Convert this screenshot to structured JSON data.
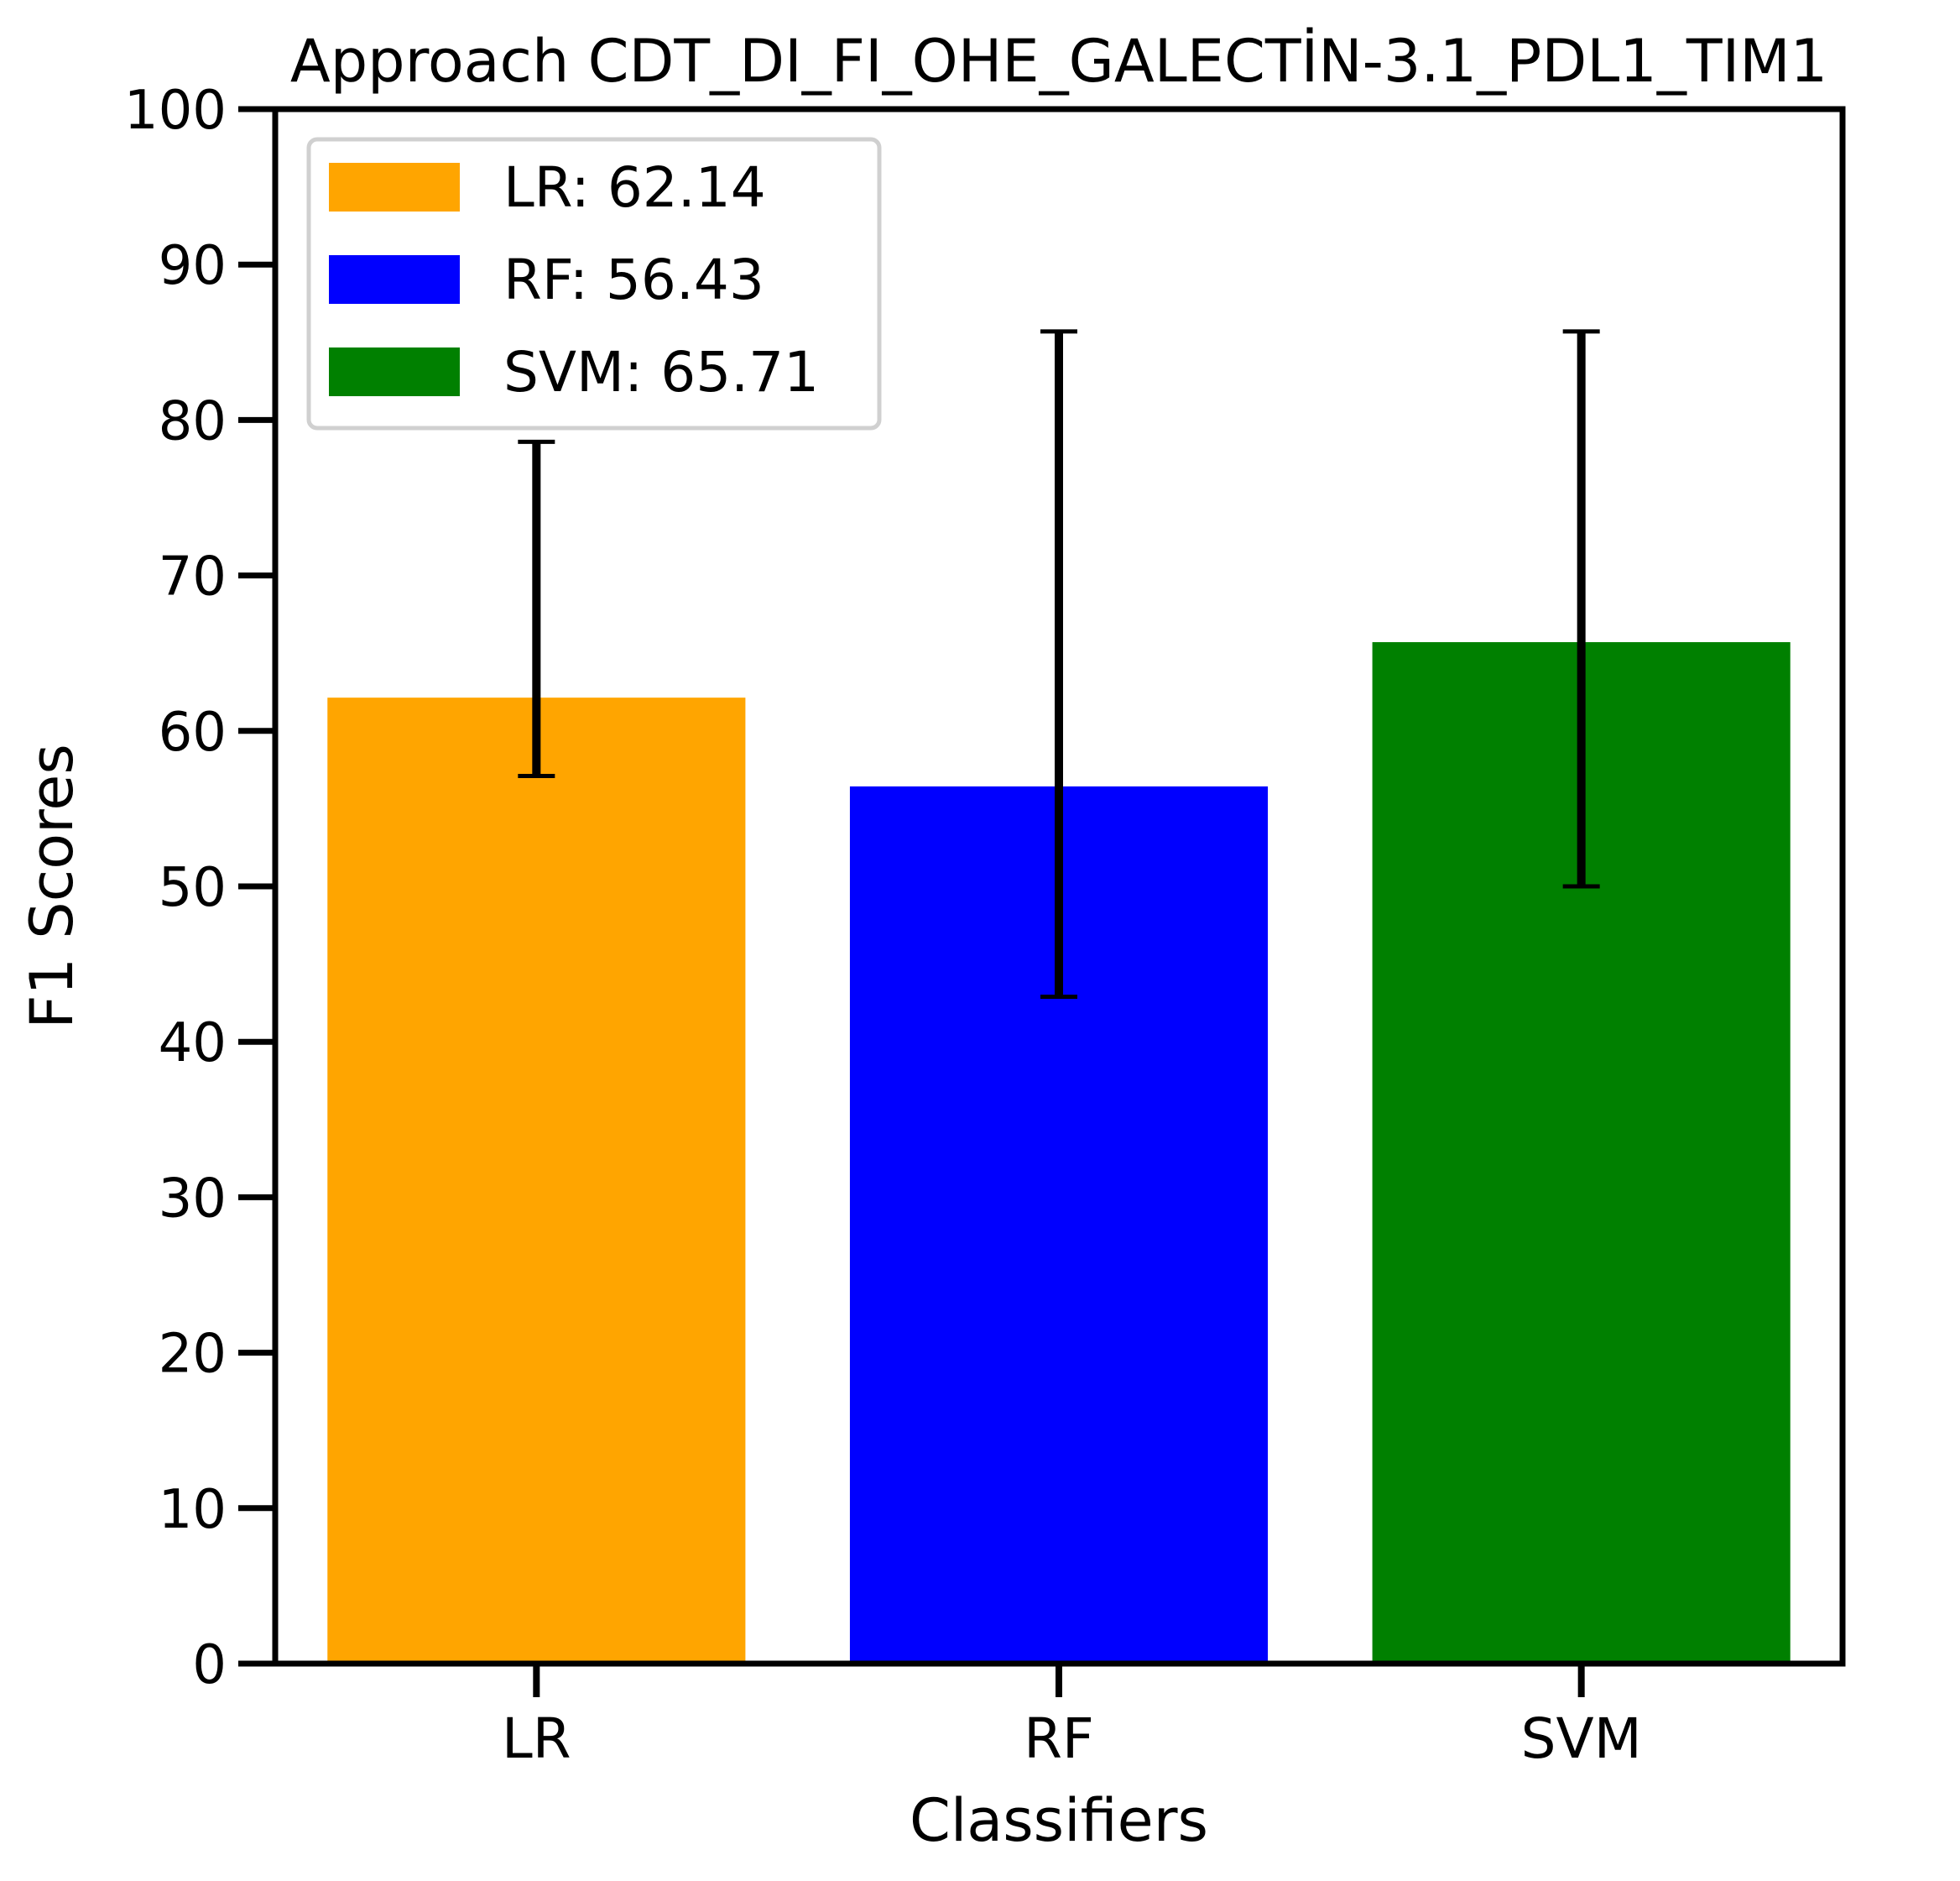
{
  "chart_data": {
    "type": "bar",
    "title": "Approach CDT_DI_FI_OHE_GALECTİN-3.1_PDL1_TIM1",
    "xlabel": "Classifiers",
    "ylabel": "F1 Scores",
    "ylim": [
      0,
      100
    ],
    "yticks": [
      0,
      10,
      20,
      30,
      40,
      50,
      60,
      70,
      80,
      90,
      100
    ],
    "categories": [
      "LR",
      "RF",
      "SVM"
    ],
    "values": [
      62.14,
      56.43,
      65.71
    ],
    "error_low": [
      57.1,
      42.9,
      50.0
    ],
    "error_high": [
      78.6,
      85.7,
      85.7
    ],
    "colors": [
      "#FFA500",
      "#0000FF",
      "#008000"
    ],
    "grid": false,
    "legend": {
      "placement": "top-left",
      "entries": [
        "LR: 62.14",
        "RF: 56.43",
        "SVM: 65.71"
      ]
    }
  }
}
